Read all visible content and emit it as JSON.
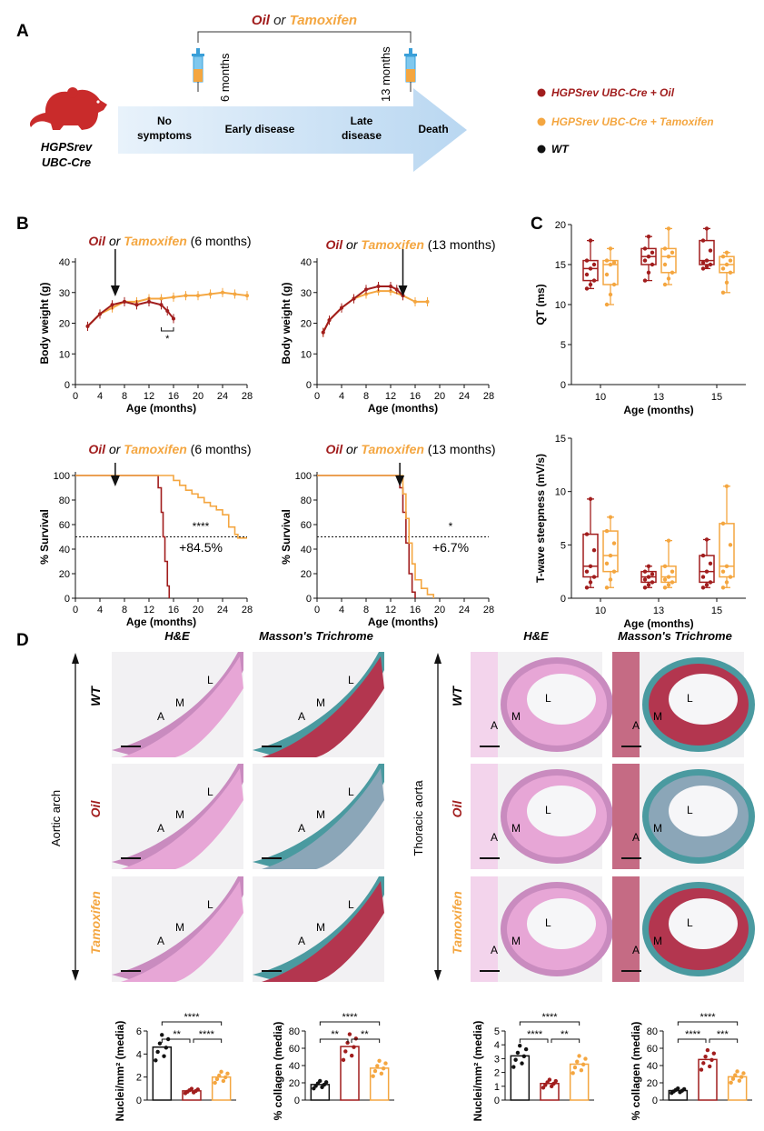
{
  "colors": {
    "oil": "#a11d1d",
    "tam": "#f4a640",
    "wt": "#111111",
    "arrow": "#cfe4f6",
    "he_bg": "#e9b6d8",
    "mt_bg": "#5c9ca0"
  },
  "panelA": {
    "label": "A",
    "mouse": [
      "HGPSrev",
      "UBC-Cre"
    ],
    "treat": {
      "oil": "Oil",
      "or": " or ",
      "tam": "Tamoxifen"
    },
    "inj1": "6 months",
    "inj2": "13 months",
    "stages": [
      [
        "No",
        "symptoms"
      ],
      [
        "Early disease"
      ],
      [
        "Late",
        "disease"
      ],
      [
        "Death"
      ]
    ],
    "legend": [
      {
        "label": "HGPSrev UBC-Cre + Oil",
        "key": "oil"
      },
      {
        "label": "HGPSrev UBC-Cre + Tamoxifen",
        "key": "tam"
      },
      {
        "label": "WT",
        "key": "wt"
      }
    ]
  },
  "panelB": {
    "label": "B",
    "titles": [
      {
        "oil": "Oil",
        "or": " or ",
        "tam": "Tamoxifen",
        "rest": " (6 months)"
      },
      {
        "oil": "Oil",
        "or": " or ",
        "tam": "Tamoxifen",
        "rest": " (13 months)"
      },
      {
        "oil": "Oil",
        "or": " or ",
        "tam": "Tamoxifen",
        "rest": " (6 months)"
      },
      {
        "oil": "Oil",
        "or": " or ",
        "tam": "Tamoxifen",
        "rest": " (13 months)"
      }
    ]
  },
  "panelC": {
    "label": "C"
  },
  "panelD": {
    "label": "D",
    "stains": [
      "H&E",
      "Masson's Trichrome",
      "H&E",
      "Masson's Trichrome"
    ],
    "rows": [
      "WT",
      "Oil",
      "Tamoxifen"
    ],
    "regions": [
      "Aortic arch",
      "Thoracic aorta"
    ],
    "layer_labels": [
      "A",
      "M",
      "L"
    ]
  },
  "chart_data": [
    {
      "type": "line",
      "title": "Oil or Tamoxifen (6 months)",
      "xlabel": "Age (months)",
      "ylabel": "Body weight (g)",
      "xlim": [
        0,
        28
      ],
      "ylim": [
        0,
        40
      ],
      "xticks": [
        0,
        4,
        8,
        12,
        16,
        20,
        24,
        28
      ],
      "yticks": [
        0,
        10,
        20,
        30,
        40
      ],
      "series": [
        {
          "name": "HGPSrev UBC-Cre + Tamoxifen",
          "x": [
            2,
            4,
            6,
            8,
            10,
            12,
            14,
            16,
            18,
            20,
            22,
            24,
            26,
            28
          ],
          "y": [
            19,
            23,
            25,
            27,
            27,
            28,
            28,
            28.5,
            29,
            29,
            29.5,
            30,
            29.5,
            29
          ]
        },
        {
          "name": "HGPSrev UBC-Cre + Oil",
          "x": [
            2,
            4,
            6,
            8,
            10,
            12,
            14,
            15,
            16
          ],
          "y": [
            19,
            23,
            26,
            27,
            26,
            27,
            26,
            24,
            21.5
          ]
        }
      ],
      "annotations": [
        "*"
      ],
      "arrow_at": 6.5
    },
    {
      "type": "line",
      "title": "Oil or Tamoxifen (13 months)",
      "xlabel": "Age (months)",
      "ylabel": "Body weight (g)",
      "xlim": [
        0,
        28
      ],
      "ylim": [
        0,
        40
      ],
      "xticks": [
        0,
        4,
        8,
        12,
        16,
        20,
        24,
        28
      ],
      "yticks": [
        0,
        10,
        20,
        30,
        40
      ],
      "series": [
        {
          "name": "HGPSrev UBC-Cre + Tamoxifen",
          "x": [
            1,
            2,
            4,
            6,
            8,
            10,
            12,
            14,
            16,
            18
          ],
          "y": [
            17,
            21,
            25,
            28,
            29.5,
            30.5,
            30.5,
            29,
            27,
            27
          ]
        },
        {
          "name": "HGPSrev UBC-Cre + Oil",
          "x": [
            1,
            2,
            4,
            6,
            8,
            10,
            12,
            13,
            14
          ],
          "y": [
            17,
            21,
            25,
            28,
            31,
            32,
            32,
            31,
            29
          ]
        }
      ],
      "arrow_at": 14
    },
    {
      "type": "line",
      "title": "Oil or Tamoxifen (6 months)",
      "xlabel": "Age (months)",
      "ylabel": "% Survival",
      "xlim": [
        0,
        28
      ],
      "ylim": [
        0,
        100
      ],
      "xticks": [
        0,
        4,
        8,
        12,
        16,
        20,
        24,
        28
      ],
      "yticks": [
        0,
        20,
        40,
        60,
        80,
        100
      ],
      "series": [
        {
          "name": "HGPSrev UBC-Cre + Oil",
          "x": [
            0,
            13,
            13.5,
            14,
            14.3,
            14.6,
            15,
            15.3
          ],
          "y": [
            100,
            100,
            90,
            70,
            50,
            30,
            10,
            0
          ]
        },
        {
          "name": "HGPSrev UBC-Cre + Tamoxifen",
          "x": [
            0,
            15,
            16,
            17,
            18,
            19,
            20,
            21,
            22,
            23,
            24,
            25,
            26,
            26.5,
            28
          ],
          "y": [
            100,
            100,
            96,
            92,
            88,
            85,
            82,
            78,
            75,
            72,
            68,
            58,
            52,
            49,
            49
          ]
        }
      ],
      "annotations": [
        "****",
        "+84.5%"
      ],
      "arrow_at": 6.5
    },
    {
      "type": "line",
      "title": "Oil or Tamoxifen (13 months)",
      "xlabel": "Age (months)",
      "ylabel": "% Survival",
      "xlim": [
        0,
        28
      ],
      "ylim": [
        0,
        100
      ],
      "xticks": [
        0,
        4,
        8,
        12,
        16,
        20,
        24,
        28
      ],
      "yticks": [
        0,
        20,
        40,
        60,
        80,
        100
      ],
      "series": [
        {
          "name": "HGPSrev UBC-Cre + Oil",
          "x": [
            0,
            13,
            13.5,
            14,
            14.5,
            15,
            15.5,
            16
          ],
          "y": [
            100,
            100,
            90,
            70,
            45,
            20,
            5,
            0
          ]
        },
        {
          "name": "HGPSrev UBC-Cre + Tamoxifen",
          "x": [
            0,
            13,
            14,
            14.5,
            15,
            15.5,
            16,
            17,
            18,
            19
          ],
          "y": [
            100,
            100,
            85,
            65,
            45,
            28,
            15,
            8,
            3,
            0
          ]
        }
      ],
      "annotations": [
        "*",
        "+6.7%"
      ],
      "arrow_at": 13.5
    },
    {
      "type": "box",
      "xlabel": "Age (months)",
      "ylabel": "QT (ms)",
      "categories": [
        "10",
        "13",
        "15"
      ],
      "ylim": [
        0,
        20
      ],
      "yticks": [
        0,
        5,
        10,
        15,
        20
      ],
      "series": [
        {
          "name": "HGPSrev UBC-Cre + Oil",
          "boxes": [
            [
              12,
              13,
              14.5,
              15.5,
              18
            ],
            [
              13,
              15,
              16,
              17,
              18.5
            ],
            [
              14.5,
              15,
              15.5,
              18,
              19.5
            ]
          ]
        },
        {
          "name": "HGPSrev UBC-Cre + Tamoxifen",
          "boxes": [
            [
              10,
              12.5,
              15,
              15.5,
              17
            ],
            [
              12.5,
              14,
              16,
              17,
              19.5
            ],
            [
              11.5,
              14,
              15,
              16,
              16.5
            ]
          ]
        }
      ]
    },
    {
      "type": "box",
      "xlabel": "Age (months)",
      "ylabel": "T-wave steepness (mV/s)",
      "categories": [
        "10",
        "13",
        "15"
      ],
      "ylim": [
        0,
        15
      ],
      "yticks": [
        0,
        5,
        10,
        15
      ],
      "series": [
        {
          "name": "HGPSrev UBC-Cre + Oil",
          "boxes": [
            [
              1,
              2,
              3,
              6,
              9.3
            ],
            [
              1,
              1.5,
              2,
              2.5,
              3
            ],
            [
              1,
              1.5,
              2.5,
              4,
              5.5
            ]
          ]
        },
        {
          "name": "HGPSrev UBC-Cre + Tamoxifen",
          "boxes": [
            [
              1,
              2.5,
              4,
              6.3,
              7.6
            ],
            [
              1,
              1.5,
              2,
              3,
              5.4
            ],
            [
              1,
              2,
              3,
              7,
              10.5
            ]
          ]
        }
      ]
    },
    {
      "type": "bar",
      "ylabel": "Nuclei/mm² (media)",
      "ylim": [
        0,
        6
      ],
      "yticks": [
        0,
        2,
        4,
        6
      ],
      "categories": [
        "WT",
        "Oil",
        "Tamoxifen"
      ],
      "values": [
        4.6,
        0.8,
        2.0
      ],
      "annotations": [
        "****",
        "**",
        "****"
      ]
    },
    {
      "type": "bar",
      "ylabel": "% collagen (media)",
      "ylim": [
        0,
        80
      ],
      "yticks": [
        0,
        20,
        40,
        60,
        80
      ],
      "categories": [
        "WT",
        "Oil",
        "Tamoxifen"
      ],
      "values": [
        18,
        62,
        37
      ],
      "annotations": [
        "****",
        "**",
        "**"
      ]
    },
    {
      "type": "bar",
      "ylabel": "Nuclei/mm² (media)",
      "ylim": [
        0,
        5
      ],
      "yticks": [
        0,
        1,
        2,
        3,
        4,
        5
      ],
      "categories": [
        "WT",
        "Oil",
        "Tamoxifen"
      ],
      "values": [
        3.2,
        1.2,
        2.6
      ],
      "annotations": [
        "****",
        "****",
        "**"
      ]
    },
    {
      "type": "bar",
      "ylabel": "% collagen (media)",
      "ylim": [
        0,
        80
      ],
      "yticks": [
        0,
        20,
        40,
        60,
        80
      ],
      "categories": [
        "WT",
        "Oil",
        "Tamoxifen"
      ],
      "values": [
        11,
        47,
        27
      ],
      "annotations": [
        "****",
        "****",
        "***"
      ]
    }
  ]
}
